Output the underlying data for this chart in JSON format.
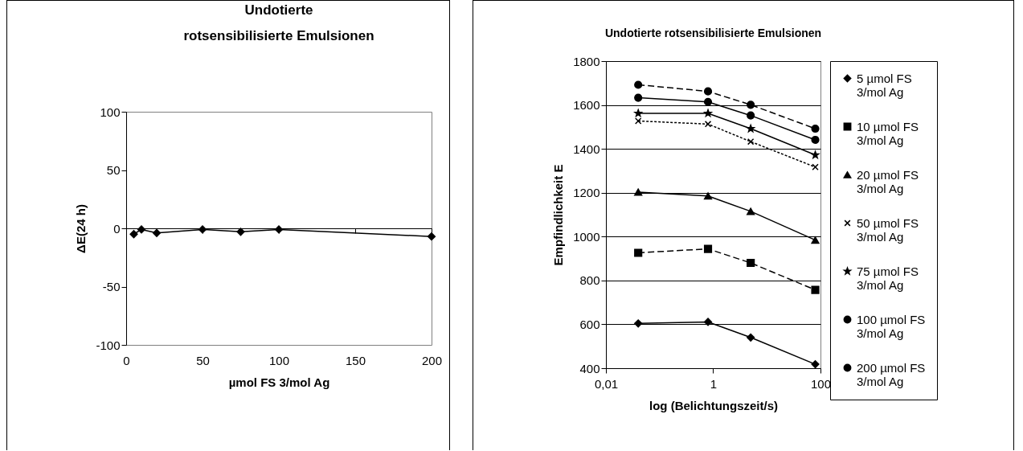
{
  "chart_data": [
    {
      "type": "line",
      "title": "Undotierte rotsensibilisierte Emulsionen",
      "xlabel": "µmol FS 3/mol Ag",
      "ylabel": "ΔE(24 h)",
      "x": [
        5,
        10,
        20,
        50,
        75,
        100,
        200
      ],
      "values": [
        -5,
        -1,
        -4,
        -1,
        -3,
        -1,
        -7
      ],
      "color": "#000000",
      "marker": "diamond",
      "line_style": "solid",
      "xlim": [
        0,
        200
      ],
      "xticks": [
        0,
        50,
        100,
        150,
        200
      ],
      "ylim": [
        -100,
        100
      ],
      "yticks": [
        -100,
        -50,
        0,
        50,
        100
      ]
    },
    {
      "type": "line",
      "title": "Undotierte rotsensibilisierte Emulsionen",
      "xlabel": "log (Belichtungszeit/s)",
      "ylabel": "Empfindlichkeit E",
      "log": "x",
      "x": [
        0.04,
        0.8,
        5,
        80
      ],
      "xlim": [
        0.01,
        100
      ],
      "xticks": [
        {
          "value": 0.01,
          "label": "0,01"
        },
        1,
        100
      ],
      "ylim": [
        400,
        1800
      ],
      "yticks": [
        400,
        600,
        800,
        1000,
        1200,
        1400,
        1600,
        1800
      ],
      "grid": "y",
      "legend": "right",
      "series": [
        {
          "name": "5 µmol FS 3/mol Ag",
          "color": "#000000",
          "marker": "diamond",
          "line_style": "solid",
          "values": [
            604,
            611,
            540,
            418
          ]
        },
        {
          "name": "10 µmol FS 3/mol Ag",
          "color": "#000000",
          "marker": "square",
          "line_style": "dashed",
          "values": [
            926,
            944,
            880,
            757
          ]
        },
        {
          "name": "20 µmol FS 3/mol Ag",
          "color": "#000000",
          "marker": "triangle",
          "line_style": "solid",
          "values": [
            1203,
            1185,
            1115,
            984
          ]
        },
        {
          "name": "50 µmol FS 3/mol Ag",
          "color": "#000000",
          "marker": "cross",
          "line_style": "dotted",
          "values": [
            1527,
            1513,
            1433,
            1317
          ]
        },
        {
          "name": "75 µmol FS 3/mol Ag",
          "color": "#000000",
          "marker": "star",
          "line_style": "solid",
          "values": [
            1562,
            1562,
            1492,
            1372
          ]
        },
        {
          "name": "100 µmol FS 3/mol Ag",
          "color": "#000000",
          "marker": "circle",
          "line_style": "solid",
          "values": [
            1633,
            1614,
            1552,
            1441
          ]
        },
        {
          "name": "200 µmol FS 3/mol Ag",
          "color": "#000000",
          "marker": "circle",
          "line_style": "dashed",
          "values": [
            1692,
            1662,
            1601,
            1492
          ]
        }
      ]
    }
  ]
}
